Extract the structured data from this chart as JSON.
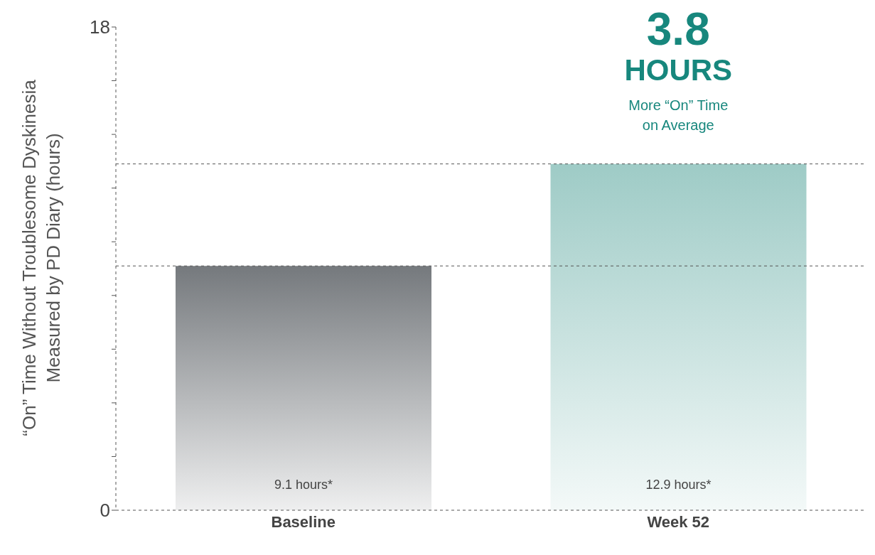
{
  "chart_data": {
    "type": "bar",
    "categories": [
      "Baseline",
      "Week 52"
    ],
    "values": [
      9.1,
      12.9
    ],
    "colors": [
      "#75797d",
      "#9ecbc6"
    ],
    "value_labels": [
      "9.1 hours*",
      "12.9 hours*"
    ],
    "ylabel": "“On” Time Without Troublesome Dyskinesia Measured by PD Diary (hours)",
    "ylim": [
      0,
      18
    ],
    "yticks": [
      0,
      {
        "value": 2,
        "label": null
      },
      {
        "value": 4,
        "label": null
      },
      {
        "value": 6,
        "label": null
      },
      {
        "value": 8,
        "label": null
      },
      {
        "value": 10,
        "label": null
      },
      {
        "value": 12,
        "label": null
      },
      {
        "value": 14,
        "label": null
      },
      {
        "value": 16,
        "label": null
      },
      18
    ],
    "ref_lines": [
      {
        "axis": "y",
        "value": 9.1,
        "label": null,
        "color": "#555555",
        "line_style": "dashed"
      },
      {
        "axis": "y",
        "value": 12.9,
        "label": null,
        "color": "#555555",
        "line_style": "dashed"
      }
    ],
    "annotations": [
      "3.8",
      "HOURS",
      "More “On” Time on Average"
    ]
  }
}
